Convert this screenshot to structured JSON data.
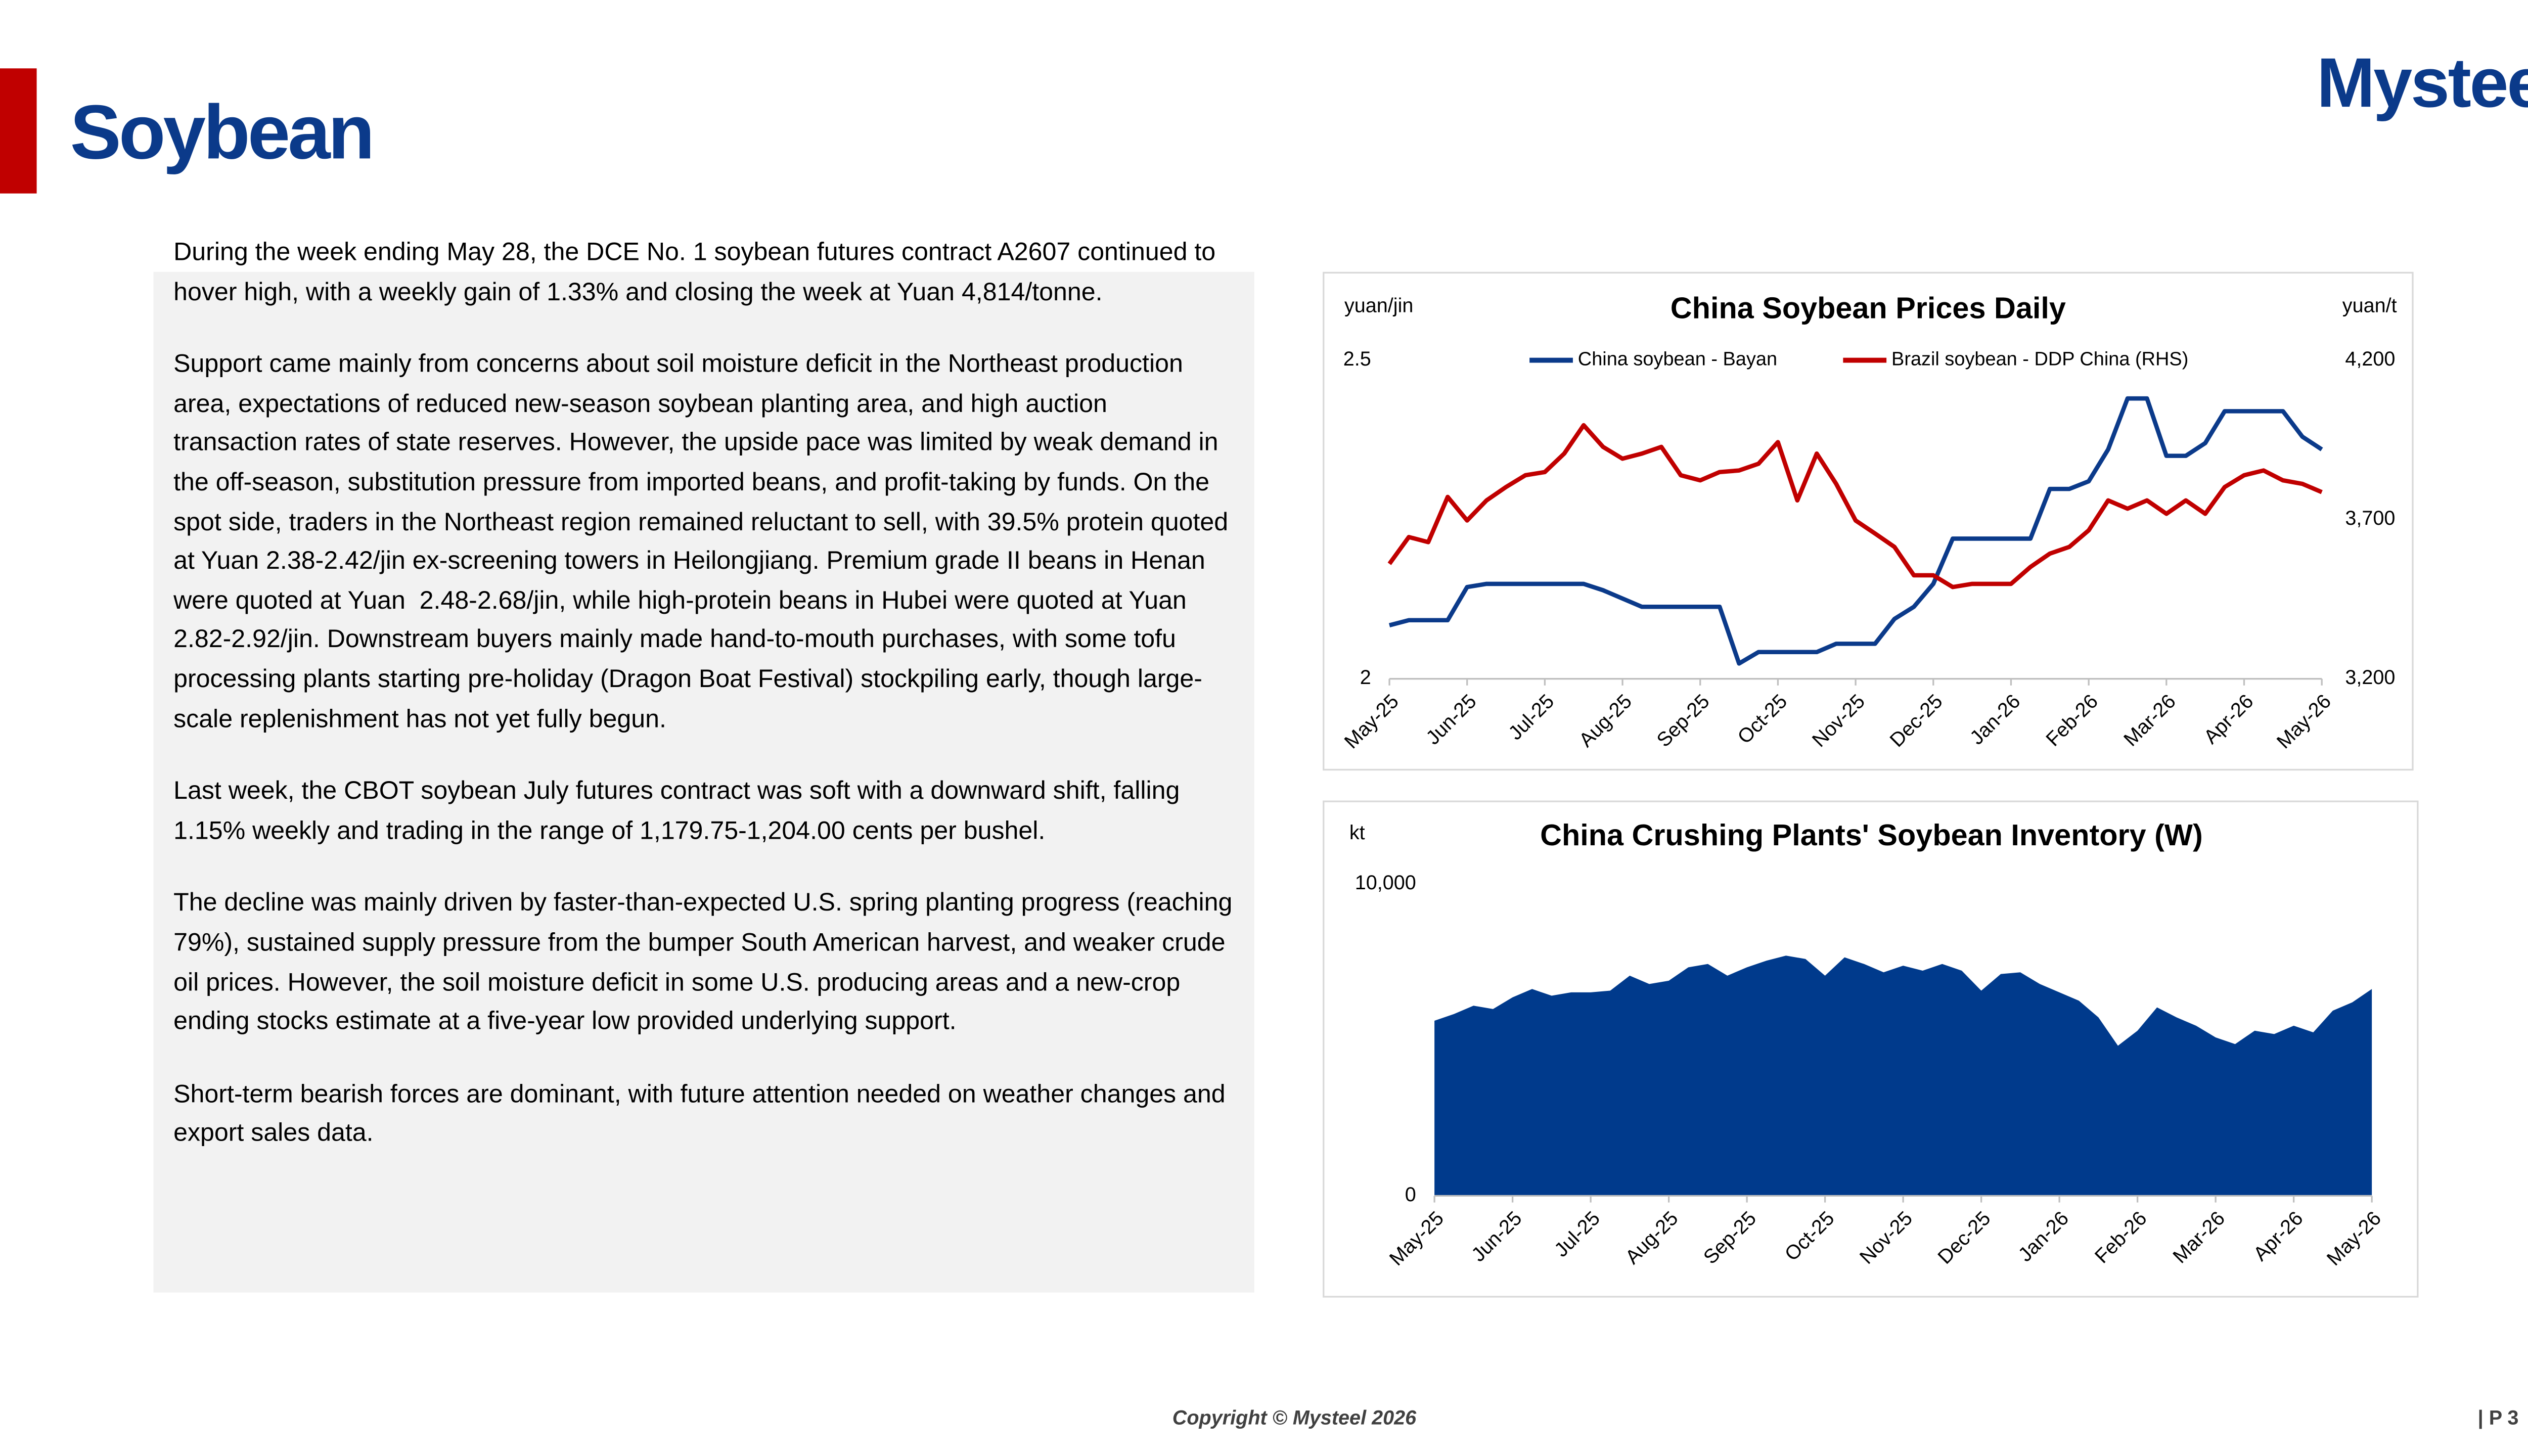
{
  "header": {
    "title": "Soybean",
    "logo": "Mysteel"
  },
  "paragraphs": [
    "During the week ending May 28, the DCE No. 1 soybean futures contract A2607 continued to hover high, with a weekly gain of 1.33% and closing the week at Yuan 4,814/tonne.",
    "Support came mainly from concerns about soil moisture deficit in the Northeast production area, expectations of reduced new-season soybean planting area, and high auction transaction rates of state reserves. However, the upside pace was limited by weak demand in the off-season, substitution pressure from imported beans, and profit-taking by funds. On the spot side, traders in the Northeast region remained reluctant to sell, with 39.5% protein quoted at Yuan 2.38-2.42/jin ex-screening towers in Heilongjiang. Premium grade II beans in Henan were quoted at Yuan  2.48-2.68/jin, while high-protein beans in Hubei were quoted at Yuan  2.82-2.92/jin. Downstream buyers mainly made hand-to-mouth purchases, with some tofu processing plants starting pre-holiday (Dragon Boat Festival) stockpiling early, though large-scale replenishment has not yet fully begun.",
    "Last week, the CBOT soybean July futures contract was soft with a downward shift, falling 1.15% weekly and trading in the range of 1,179.75-1,204.00 cents per bushel.",
    "The decline was mainly driven by faster-than-expected U.S. spring planting progress (reaching 79%), sustained supply pressure from the bumper South American harvest, and weaker crude oil prices. However, the soil moisture deficit in some U.S. producing areas and a new-crop ending stocks estimate at a five-year low provided underlying support.",
    "Short-term bearish forces are dominant, with future attention needed on weather changes and export sales data."
  ],
  "chart_data": [
    {
      "type": "line",
      "title": "China Soybean Prices Daily",
      "y_label": "yuan/jin",
      "y2_label": "yuan/t",
      "legend": "top",
      "categories": [
        "May-25",
        null,
        null,
        null,
        "Jun-25",
        null,
        null,
        null,
        "Jul-25",
        null,
        null,
        null,
        "Aug-25",
        null,
        null,
        null,
        "Sep-25",
        null,
        null,
        null,
        "Oct-25",
        null,
        null,
        null,
        "Nov-25",
        null,
        null,
        null,
        "Dec-25",
        null,
        null,
        null,
        "Jan-26",
        null,
        null,
        null,
        "Feb-26",
        null,
        null,
        null,
        "Mar-26",
        null,
        null,
        null,
        "Apr-26",
        null,
        null,
        null,
        "May-26"
      ],
      "ylim": [
        2,
        2.5
      ],
      "yticks": [
        2,
        2.5
      ],
      "y2lim": [
        3200,
        4200
      ],
      "y2ticks": [
        {
          "value": 3200,
          "label": "3,200"
        },
        {
          "value": 3700,
          "label": "3,700"
        },
        {
          "value": 4200,
          "label": "4,200"
        }
      ],
      "series": [
        {
          "name": "China soybean - Bayan",
          "color": "#0b3a8a",
          "values": [
            2.084,
            2.092,
            2.092,
            2.092,
            2.144,
            2.149,
            2.149,
            2.149,
            2.149,
            2.149,
            2.149,
            2.139,
            2.126,
            2.113,
            2.113,
            2.113,
            2.113,
            2.113,
            2.024,
            2.042,
            2.042,
            2.042,
            2.042,
            2.055,
            2.055,
            2.055,
            2.094,
            2.113,
            2.149,
            2.22,
            2.22,
            2.22,
            2.22,
            2.22,
            2.298,
            2.298,
            2.31,
            2.36,
            2.44,
            2.44,
            2.35,
            2.35,
            2.37,
            2.42,
            2.42,
            2.42,
            2.42,
            2.38,
            2.36
          ]
        },
        {
          "name": "Brazil soybean - DDP China (RHS)",
          "color": "#c00000",
          "axis": "y2",
          "values": [
            3561,
            3645,
            3629,
            3771,
            3697,
            3760,
            3802,
            3839,
            3849,
            3907,
            3996,
            3928,
            3891,
            3907,
            3928,
            3839,
            3823,
            3849,
            3854,
            3875,
            3943,
            3760,
            3907,
            3812,
            3697,
            3656,
            3614,
            3525,
            3525,
            3488,
            3498,
            3498,
            3498,
            3551,
            3593,
            3614,
            3666,
            3760,
            3734,
            3760,
            3718,
            3760,
            3718,
            3802,
            3839,
            3854,
            3823,
            3812,
            3786
          ]
        }
      ]
    },
    {
      "type": "area",
      "title": "China Crushing Plants' Soybean Inventory (W)",
      "y_label": "kt",
      "color": "#003a8c",
      "categories": [
        "May-25",
        null,
        null,
        null,
        "Jun-25",
        null,
        null,
        null,
        "Jul-25",
        null,
        null,
        null,
        "Aug-25",
        null,
        null,
        null,
        "Sep-25",
        null,
        null,
        null,
        "Oct-25",
        null,
        null,
        null,
        "Nov-25",
        null,
        null,
        null,
        "Dec-25",
        null,
        null,
        null,
        "Jan-26",
        null,
        null,
        null,
        "Feb-26",
        null,
        null,
        null,
        "Mar-26",
        null,
        null,
        null,
        "Apr-26",
        null,
        null,
        null,
        "May-26"
      ],
      "ylim": [
        0,
        10000
      ],
      "yticks": [
        0,
        {
          "value": 10000,
          "label": "10,000"
        }
      ],
      "values": [
        5615,
        5829,
        6096,
        5989,
        6364,
        6631,
        6417,
        6524,
        6524,
        6578,
        7059,
        6791,
        6898,
        7326,
        7433,
        7059,
        7326,
        7540,
        7701,
        7594,
        7059,
        7647,
        7433,
        7166,
        7380,
        7219,
        7433,
        7219,
        6578,
        7112,
        7166,
        6791,
        6524,
        6257,
        5722,
        4813,
        5294,
        6043,
        5722,
        5455,
        5080,
        4866,
        5294,
        5187,
        5455,
        5241,
        5936,
        6203,
        6631
      ]
    }
  ],
  "footer": {
    "copyright": "Copyright © Mysteel 2026",
    "page": "| P 3"
  }
}
